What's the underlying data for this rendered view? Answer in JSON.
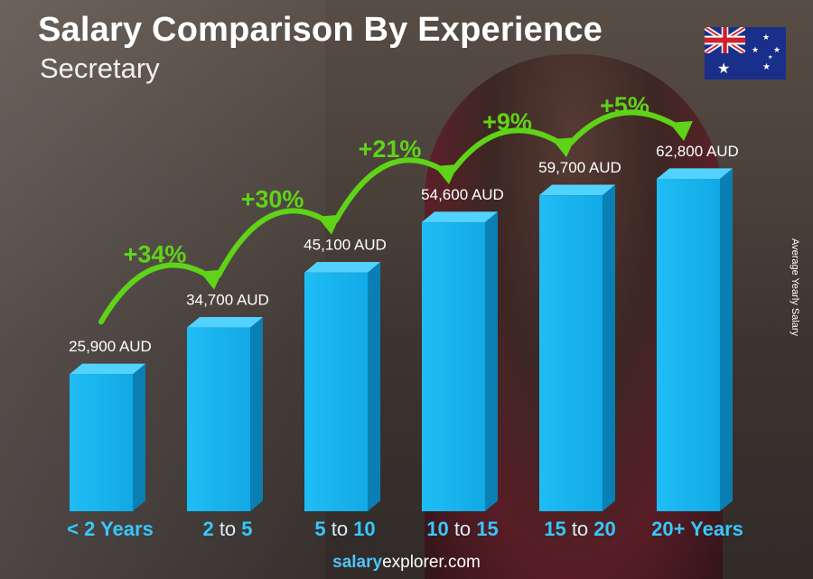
{
  "header": {
    "title": "Salary Comparison By Experience",
    "subtitle": "Secretary"
  },
  "side_label": "Average Yearly Salary",
  "footer": {
    "brand": "salary",
    "rest": "explorer.com"
  },
  "flag_icon": "australia-flag-icon",
  "colors": {
    "bar_front": "#18b4ee",
    "bar_side": "#0a7fb3",
    "bar_top": "#52d2ff",
    "arrow": "#5fd318",
    "axis_label": "#36c8ff",
    "axis_connector": "#d9eef8"
  },
  "chart_data": {
    "type": "bar",
    "title": "Salary Comparison By Experience",
    "subtitle": "Secretary",
    "ylabel": "Average Yearly Salary",
    "categories": [
      "< 2 Years",
      "2 to 5",
      "5 to 10",
      "10 to 15",
      "15 to 20",
      "20+ Years"
    ],
    "category_parts": [
      [
        "< 2 Years"
      ],
      [
        "2",
        " to ",
        "5"
      ],
      [
        "5",
        " to ",
        "10"
      ],
      [
        "10",
        " to ",
        "15"
      ],
      [
        "15",
        " to ",
        "20"
      ],
      [
        "20+ Years"
      ]
    ],
    "values": [
      25900,
      34700,
      45100,
      54600,
      59700,
      62800
    ],
    "value_labels": [
      "25,900 AUD",
      "34,700 AUD",
      "45,100 AUD",
      "54,600 AUD",
      "59,700 AUD",
      "62,800 AUD"
    ],
    "increase_labels": [
      "+34%",
      "+30%",
      "+21%",
      "+9%",
      "+5%"
    ],
    "unit": "AUD"
  }
}
